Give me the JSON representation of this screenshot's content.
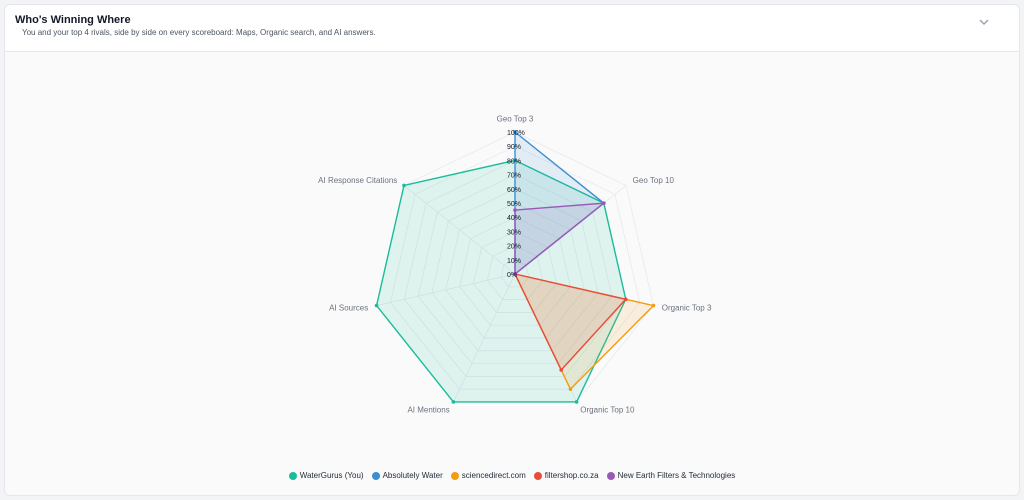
{
  "header": {
    "title": "Who's Winning Where",
    "subtitle": "You and your top 4 rivals, side by side on every scoreboard: Maps, Organic search, and AI answers."
  },
  "chart_data": {
    "type": "radar",
    "axes": [
      "Geo Top 3",
      "Geo Top 10",
      "Organic Top 3",
      "Organic Top 10",
      "AI Mentions",
      "AI Sources",
      "AI Response Citations"
    ],
    "ticks": [
      "0%",
      "10%",
      "20%",
      "30%",
      "40%",
      "50%",
      "60%",
      "70%",
      "80%",
      "90%",
      "100%"
    ],
    "range": [
      0,
      100
    ],
    "grid": true,
    "legend_position": "bottom",
    "series": [
      {
        "name": "WaterGurus (You)",
        "color": "#1abc9c",
        "values": [
          80,
          80,
          80,
          100,
          100,
          100,
          100
        ]
      },
      {
        "name": "Absolutely Water",
        "color": "#3b8fd1",
        "values": [
          100,
          80,
          0,
          0,
          0,
          0,
          0
        ]
      },
      {
        "name": "sciencedirect.com",
        "color": "#f39c12",
        "values": [
          0,
          0,
          100,
          90,
          0,
          0,
          0
        ]
      },
      {
        "name": "filtershop.co.za",
        "color": "#e74c3c",
        "values": [
          0,
          0,
          80,
          75,
          0,
          0,
          0
        ]
      },
      {
        "name": "New Earth Filters & Technologies",
        "color": "#9b59b6",
        "values": [
          45,
          80,
          0,
          0,
          0,
          0,
          0
        ]
      }
    ]
  }
}
